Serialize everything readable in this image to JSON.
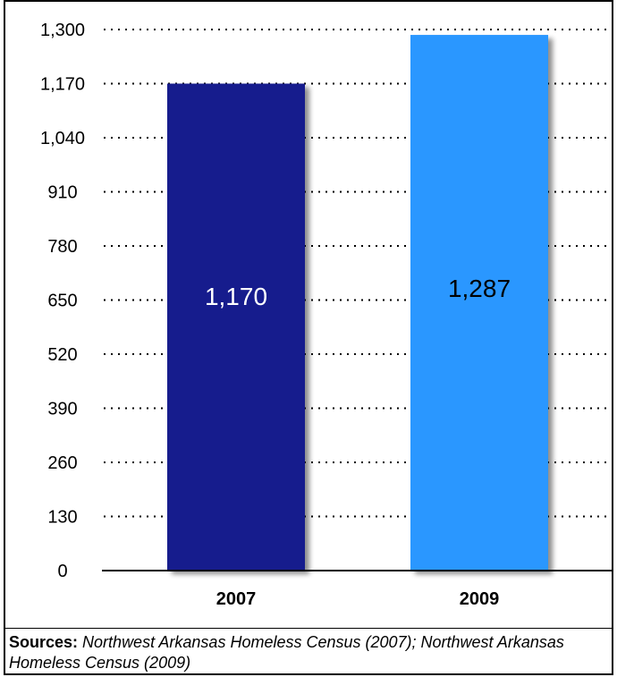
{
  "chart_data": {
    "type": "bar",
    "categories": [
      "2007",
      "2009"
    ],
    "values": [
      1170,
      1287
    ],
    "data_labels": [
      "1,170",
      "1,287"
    ],
    "bar_colors": [
      "#151b8d",
      "#2b97ff"
    ],
    "data_label_colors": [
      "#ffffff",
      "#000000"
    ],
    "ylim": [
      0,
      1300
    ],
    "yticks": [
      0,
      130,
      260,
      390,
      520,
      650,
      780,
      910,
      1040,
      1170,
      1300
    ],
    "ytick_labels": [
      "0",
      "130",
      "260",
      "390",
      "520",
      "650",
      "780",
      "910",
      "1,040",
      "1,170",
      "1,300"
    ],
    "grid": "dotted horizontal",
    "title": "",
    "xlabel": "",
    "ylabel": ""
  },
  "sources": {
    "label": "Sources:",
    "text": "Northwest Arkansas Homeless Census (2007); Northwest Arkansas Homeless Census (2009)"
  }
}
